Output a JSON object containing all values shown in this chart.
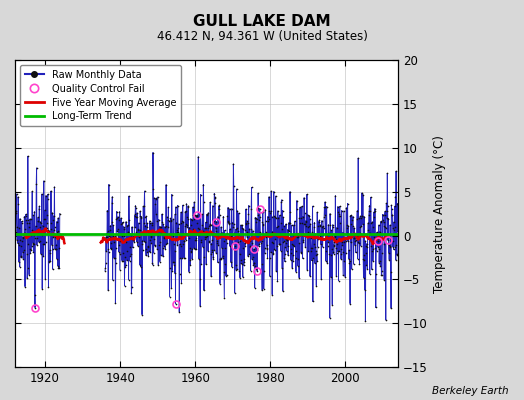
{
  "title": "GULL LAKE DAM",
  "subtitle": "46.412 N, 94.361 W (United States)",
  "ylabel": "Temperature Anomaly (°C)",
  "credit": "Berkeley Earth",
  "xlim": [
    1912,
    2014
  ],
  "ylim": [
    -15,
    20
  ],
  "yticks": [
    -15,
    -10,
    -5,
    0,
    5,
    10,
    15,
    20
  ],
  "xticks": [
    1920,
    1940,
    1960,
    1980,
    2000
  ],
  "bg_color": "#d8d8d8",
  "plot_bg_color": "#ffffff",
  "raw_color": "#2222bb",
  "raw_dot_color": "#111111",
  "qc_color": "#ff44cc",
  "moving_avg_color": "#dd0000",
  "trend_color": "#00bb00",
  "seed": 17,
  "start_year": 1912,
  "end_year": 2013,
  "n_months": 1224,
  "trend_y": 0.15
}
